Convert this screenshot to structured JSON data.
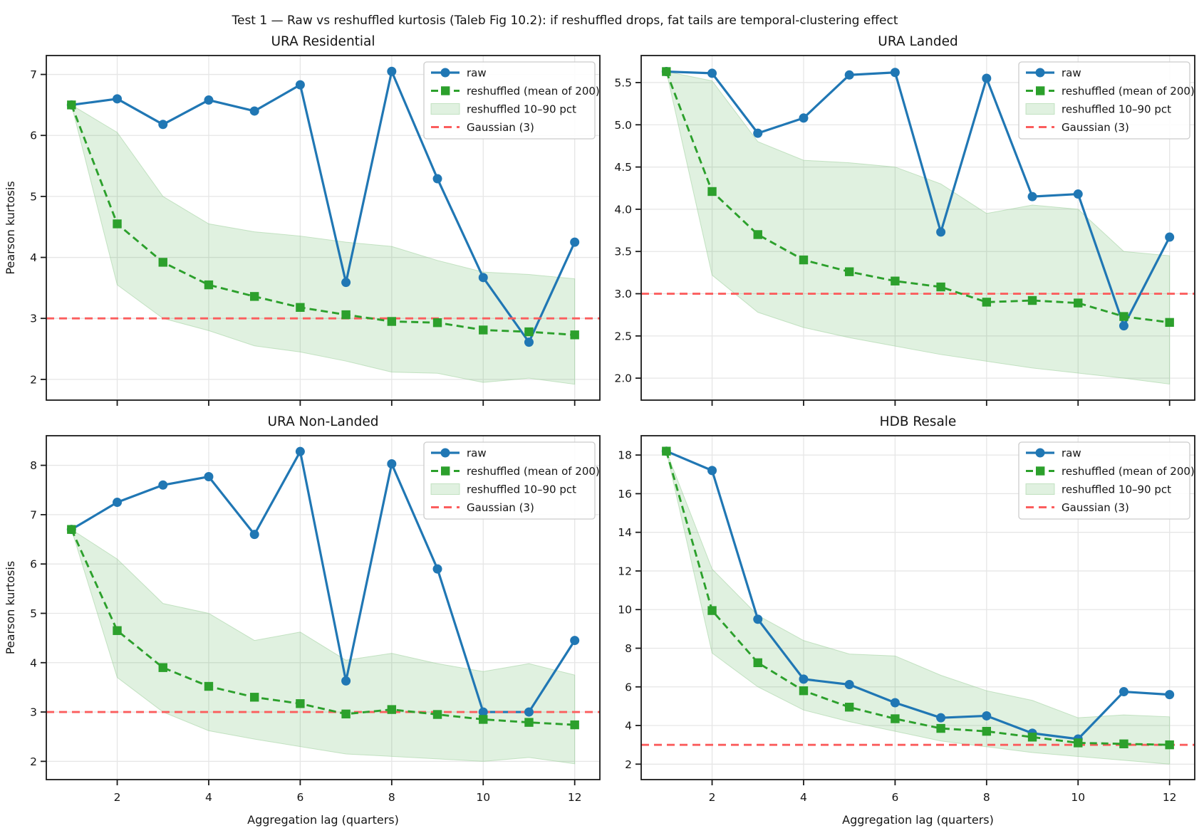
{
  "figure": {
    "title": "Test 1 — Raw vs reshuffled kurtosis (Taleb Fig 10.2): if reshuffled drops, fat tails are temporal-clustering effect"
  },
  "axes": {
    "xlabel": "Aggregation lag (quarters)",
    "ylabel": "Pearson kurtosis"
  },
  "legend": {
    "position": "upper right",
    "items": [
      {
        "key": "raw",
        "label": "raw"
      },
      {
        "key": "reshuffled",
        "label": "reshuffled (mean of 200)"
      },
      {
        "key": "band",
        "label": "reshuffled 10–90 pct"
      },
      {
        "key": "gaussian",
        "label": "Gaussian (3)"
      }
    ]
  },
  "colors": {
    "raw": "#2077b4",
    "reshuffled": "#2ca02c",
    "band_fill": "#2ca02c",
    "band_opacity": 0.15,
    "band_edge": "#9fcf9c",
    "gaussian": "#fb5d5d",
    "grid": "#e6e6e6",
    "spine": "#1a1a1a",
    "legend_border": "#cccccc"
  },
  "chart_data": [
    {
      "type": "line",
      "title": "URA Residential",
      "x": [
        1,
        2,
        3,
        4,
        5,
        6,
        7,
        8,
        9,
        10,
        11,
        12
      ],
      "series": [
        {
          "name": "raw",
          "values": [
            6.5,
            6.6,
            6.18,
            6.58,
            6.4,
            6.83,
            3.59,
            7.05,
            5.29,
            3.67,
            2.61,
            4.25
          ]
        },
        {
          "name": "reshuffled (mean of 200)",
          "values": [
            6.5,
            4.55,
            3.92,
            3.55,
            3.36,
            3.18,
            3.06,
            2.95,
            2.93,
            2.81,
            2.78,
            2.73
          ]
        }
      ],
      "band": {
        "name": "reshuffled 10–90 pct",
        "upper": [
          6.5,
          6.05,
          5.0,
          4.55,
          4.42,
          4.35,
          4.25,
          4.18,
          3.95,
          3.76,
          3.72,
          3.65
        ],
        "lower": [
          6.5,
          3.55,
          3.0,
          2.8,
          2.55,
          2.45,
          2.3,
          2.12,
          2.1,
          1.95,
          2.02,
          1.92
        ]
      },
      "gaussian_ref": 3,
      "xticks": [
        2,
        4,
        6,
        8,
        10,
        12
      ],
      "yticks": [
        "2",
        "3",
        "4",
        "5",
        "6",
        "7"
      ],
      "xlim": [
        0.45,
        12.55
      ],
      "ylim": [
        1.66,
        7.31
      ],
      "ylabel": "Pearson kurtosis",
      "xlabel": "",
      "show_x_tick_labels": false,
      "grid": true,
      "legend_position": "upper right"
    },
    {
      "type": "line",
      "title": "URA Landed",
      "x": [
        1,
        2,
        3,
        4,
        5,
        6,
        7,
        8,
        9,
        10,
        11,
        12
      ],
      "series": [
        {
          "name": "raw",
          "values": [
            5.63,
            5.61,
            4.9,
            5.08,
            5.59,
            5.62,
            3.73,
            5.55,
            4.15,
            4.18,
            2.62,
            3.67
          ]
        },
        {
          "name": "reshuffled (mean of 200)",
          "values": [
            5.63,
            4.21,
            3.7,
            3.4,
            3.26,
            3.15,
            3.08,
            2.9,
            2.92,
            2.89,
            2.73,
            2.66
          ]
        }
      ],
      "band": {
        "name": "reshuffled 10–90 pct",
        "upper": [
          5.63,
          5.52,
          4.8,
          4.58,
          4.55,
          4.5,
          4.3,
          3.95,
          4.05,
          4.0,
          3.5,
          3.45
        ],
        "lower": [
          5.63,
          3.22,
          2.78,
          2.6,
          2.48,
          2.38,
          2.28,
          2.2,
          2.12,
          2.06,
          2.0,
          1.93
        ]
      },
      "gaussian_ref": 3,
      "xticks": [
        2,
        4,
        6,
        8,
        10,
        12
      ],
      "yticks": [
        "2.0",
        "2.5",
        "3.0",
        "3.5",
        "4.0",
        "4.5",
        "5.0",
        "5.5"
      ],
      "xlim": [
        0.45,
        12.55
      ],
      "ylim": [
        1.74,
        5.82
      ],
      "ylabel": "",
      "xlabel": "",
      "show_x_tick_labels": false,
      "grid": true,
      "legend_position": "upper right"
    },
    {
      "type": "line",
      "title": "URA Non-Landed",
      "x": [
        1,
        2,
        3,
        4,
        5,
        6,
        7,
        8,
        9,
        10,
        11,
        12
      ],
      "series": [
        {
          "name": "raw",
          "values": [
            6.7,
            7.25,
            7.6,
            7.77,
            6.6,
            8.28,
            3.63,
            8.03,
            5.9,
            3.0,
            3.0,
            4.45
          ]
        },
        {
          "name": "reshuffled (mean of 200)",
          "values": [
            6.7,
            4.65,
            3.9,
            3.52,
            3.3,
            3.17,
            2.96,
            3.05,
            2.95,
            2.85,
            2.79,
            2.74
          ]
        }
      ],
      "band": {
        "name": "reshuffled 10–90 pct",
        "upper": [
          6.7,
          6.1,
          5.2,
          5.0,
          4.45,
          4.62,
          4.05,
          4.19,
          3.98,
          3.82,
          3.98,
          3.75
        ],
        "lower": [
          6.7,
          3.7,
          3.0,
          2.62,
          2.45,
          2.3,
          2.15,
          2.1,
          2.05,
          2.0,
          2.08,
          1.95
        ]
      },
      "gaussian_ref": 3,
      "xticks": [
        2,
        4,
        6,
        8,
        10,
        12
      ],
      "yticks": [
        "2",
        "3",
        "4",
        "5",
        "6",
        "7",
        "8"
      ],
      "xlim": [
        0.45,
        12.55
      ],
      "ylim": [
        1.63,
        8.6
      ],
      "ylabel": "Pearson kurtosis",
      "xlabel": "Aggregation lag (quarters)",
      "show_x_tick_labels": true,
      "grid": true,
      "legend_position": "upper right"
    },
    {
      "type": "line",
      "title": "HDB Resale",
      "x": [
        1,
        2,
        3,
        4,
        5,
        6,
        7,
        8,
        9,
        10,
        11,
        12
      ],
      "series": [
        {
          "name": "raw",
          "values": [
            18.2,
            17.2,
            9.5,
            6.4,
            6.12,
            5.18,
            4.4,
            4.5,
            3.6,
            3.3,
            5.75,
            5.6
          ]
        },
        {
          "name": "reshuffled (mean of 200)",
          "values": [
            18.2,
            9.95,
            7.25,
            5.8,
            4.95,
            4.35,
            3.85,
            3.7,
            3.4,
            3.1,
            3.05,
            3.0
          ]
        }
      ],
      "band": {
        "name": "reshuffled 10–90 pct",
        "upper": [
          18.2,
          12.1,
          9.7,
          8.4,
          7.7,
          7.6,
          6.6,
          5.8,
          5.3,
          4.4,
          4.55,
          4.45
        ],
        "lower": [
          18.2,
          7.75,
          6.0,
          4.8,
          4.2,
          3.7,
          3.2,
          2.9,
          2.6,
          2.4,
          2.2,
          2.0
        ]
      },
      "gaussian_ref": 3,
      "xticks": [
        2,
        4,
        6,
        8,
        10,
        12
      ],
      "yticks": [
        "2",
        "4",
        "6",
        "8",
        "10",
        "12",
        "14",
        "16",
        "18"
      ],
      "xlim": [
        0.45,
        12.55
      ],
      "ylim": [
        1.2,
        19.0
      ],
      "ylabel": "",
      "xlabel": "Aggregation lag (quarters)",
      "show_x_tick_labels": true,
      "grid": true,
      "legend_position": "upper right"
    }
  ]
}
